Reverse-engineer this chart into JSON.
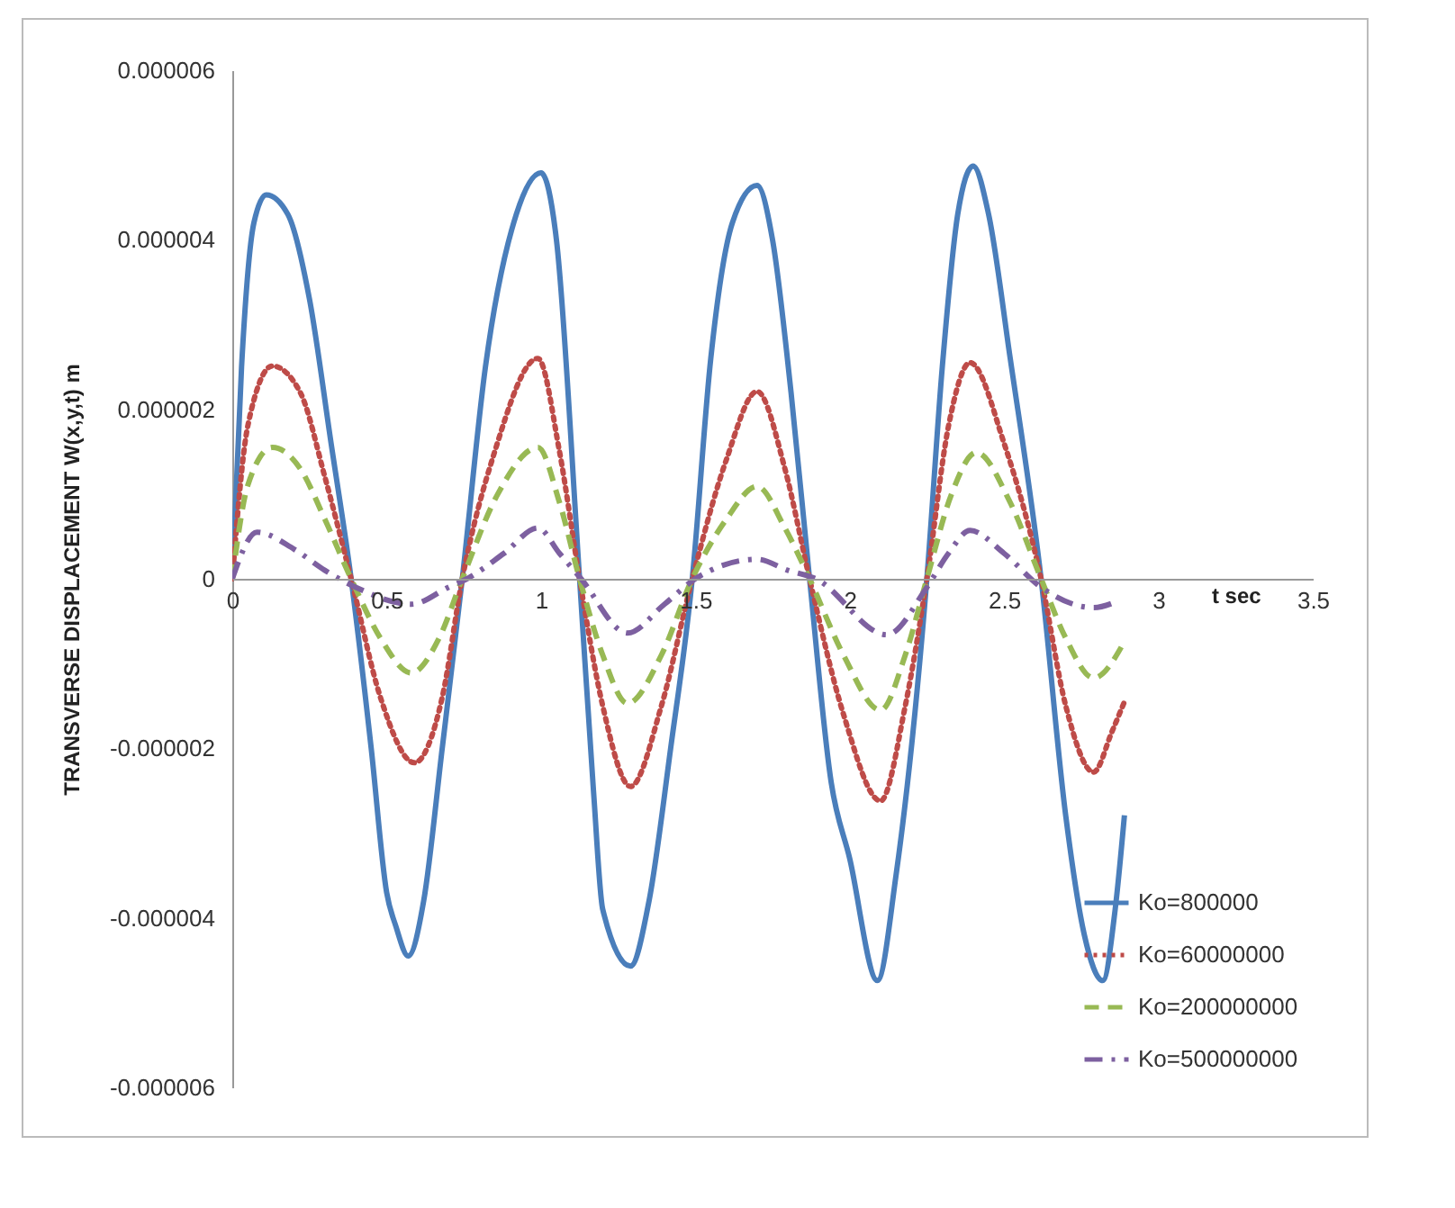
{
  "chart_data": {
    "type": "line",
    "xlabel": "t  sec",
    "ylabel": "TRANSVERSE DISPLACEMENT   W(x,y,t)  m",
    "xlim": [
      0,
      3.5
    ],
    "xticks": [
      0,
      0.5,
      1,
      1.5,
      2,
      2.5,
      3,
      3.5
    ],
    "ylim": [
      -6e-06,
      6e-06
    ],
    "yticks": [
      {
        "value": -6e-06,
        "label": "-0.000006"
      },
      {
        "value": -4e-06,
        "label": "-0.000004"
      },
      {
        "value": -2e-06,
        "label": "-0.000002"
      },
      0,
      {
        "value": 2e-06,
        "label": "0.000002"
      },
      {
        "value": 4e-06,
        "label": "0.000004"
      },
      {
        "value": 6e-06,
        "label": "0.000006"
      }
    ],
    "grid": false,
    "legend": "bottom right",
    "marker": "none",
    "series": [
      {
        "name": "Ko=800000",
        "color": "#4a7ebb",
        "line_style": "solid",
        "x": [
          0,
          0.03,
          0.07,
          0.11,
          0.18,
          0.25,
          0.32,
          0.385,
          0.45,
          0.5,
          0.53,
          0.57,
          0.62,
          0.68,
          0.745,
          0.82,
          0.92,
          1.0,
          1.05,
          1.125,
          1.17,
          1.2,
          1.29,
          1.35,
          1.42,
          1.49,
          1.55,
          1.62,
          1.7,
          1.75,
          1.81,
          1.87,
          1.94,
          2.0,
          2.09,
          2.15,
          2.25,
          2.3,
          2.35,
          2.4,
          2.45,
          2.52,
          2.62,
          2.7,
          2.76,
          2.82,
          2.86,
          2.89
        ],
        "values": [
          0,
          2.5e-06,
          4.2e-06,
          4.53e-06,
          4.3e-06,
          3.3e-06,
          1.6e-06,
          0,
          -2e-06,
          -3.7e-06,
          -4.1e-06,
          -4.45e-06,
          -3.8e-06,
          -2e-06,
          0,
          2.5e-06,
          4.3e-06,
          4.79e-06,
          4e-06,
          0,
          -2.5e-06,
          -3.9e-06,
          -4.57e-06,
          -3.8e-06,
          -2e-06,
          0,
          2.6e-06,
          4.2e-06,
          4.64e-06,
          4e-06,
          2.2e-06,
          0,
          -2.4e-06,
          -3.3e-06,
          -4.74e-06,
          -3.5e-06,
          0,
          2.5e-06,
          4.3e-06,
          4.87e-06,
          4.3e-06,
          2.6e-06,
          0,
          -2.8e-06,
          -4.2e-06,
          -4.74e-06,
          -3.9e-06,
          -2.79e-06
        ]
      },
      {
        "name": "Ko=60000000",
        "color": "#be4b48",
        "line_style": "dotted",
        "x": [
          0,
          0.05,
          0.13,
          0.22,
          0.3,
          0.385,
          0.48,
          0.59,
          0.68,
          0.745,
          0.85,
          0.99,
          1.06,
          1.125,
          1.2,
          1.29,
          1.39,
          1.49,
          1.6,
          1.7,
          1.79,
          1.87,
          1.98,
          2.1,
          2.18,
          2.25,
          2.32,
          2.39,
          2.5,
          2.62,
          2.7,
          2.79,
          2.85,
          2.89
        ],
        "values": [
          0,
          1.8e-06,
          2.51e-06,
          2.2e-06,
          1.2e-06,
          0,
          -1.4e-06,
          -2.17e-06,
          -1.4e-06,
          0,
          1.5e-06,
          2.6e-06,
          1.5e-06,
          0,
          -1.5e-06,
          -2.45e-06,
          -1.5e-06,
          0,
          1.4e-06,
          2.21e-06,
          1.3e-06,
          0,
          -1.6e-06,
          -2.62e-06,
          -1.5e-06,
          0,
          1.8e-06,
          2.55e-06,
          1.6e-06,
          0,
          -1.5e-06,
          -2.28e-06,
          -1.8e-06,
          -1.45e-06
        ]
      },
      {
        "name": "Ko=200000000",
        "color": "#98b954",
        "line_style": "dashed",
        "x": [
          0,
          0.05,
          0.13,
          0.22,
          0.3,
          0.385,
          0.48,
          0.58,
          0.67,
          0.745,
          0.86,
          0.99,
          1.06,
          1.125,
          1.2,
          1.28,
          1.39,
          1.49,
          1.6,
          1.7,
          1.79,
          1.87,
          1.98,
          2.1,
          2.18,
          2.25,
          2.33,
          2.41,
          2.52,
          2.62,
          2.7,
          2.79,
          2.89
        ],
        "values": [
          0,
          1.1e-06,
          1.55e-06,
          1.3e-06,
          7e-07,
          0,
          -7e-07,
          -1.11e-06,
          -7e-07,
          0,
          1e-06,
          1.55e-06,
          9e-07,
          0,
          -9e-07,
          -1.47e-06,
          -9e-07,
          0,
          7e-07,
          1.09e-06,
          6e-07,
          0,
          -9e-07,
          -1.55e-06,
          -9e-07,
          0,
          1e-06,
          1.49e-06,
          9e-07,
          0,
          -7e-07,
          -1.17e-06,
          -7.4e-07
        ]
      },
      {
        "name": "Ko=500000000",
        "color": "#7d60a0",
        "line_style": "dashdot",
        "x": [
          0,
          0.08,
          0.2,
          0.3,
          0.4,
          0.58,
          0.7,
          0.76,
          0.88,
          0.99,
          1.06,
          1.13,
          1.28,
          1.4,
          1.5,
          1.7,
          1.8,
          1.89,
          2.12,
          2.25,
          2.32,
          2.39,
          2.5,
          2.62,
          2.79,
          2.87
        ],
        "values": [
          0,
          5.5e-07,
          3.5e-07,
          1e-07,
          -1e-07,
          -3e-07,
          -1e-07,
          0,
          3e-07,
          6e-07,
          3e-07,
          0,
          -6.4e-07,
          -3e-07,
          0,
          2.3e-07,
          1e-07,
          0,
          -6.6e-07,
          -1e-07,
          3e-07,
          5.7e-07,
          3e-07,
          -1e-07,
          -3.4e-07,
          -2.6e-07
        ]
      }
    ]
  }
}
